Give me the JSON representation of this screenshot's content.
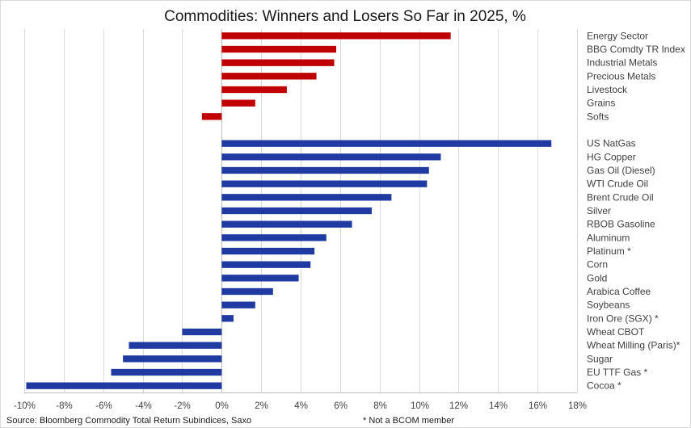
{
  "chart_data": {
    "type": "bar",
    "orientation": "horizontal",
    "title": "Commodities: Winners and Losers So Far in 2025, %",
    "xlim": [
      -10,
      18
    ],
    "x_ticks": [
      -10,
      -8,
      -6,
      -4,
      -2,
      0,
      2,
      4,
      6,
      8,
      10,
      12,
      14,
      16,
      18
    ],
    "x_tick_labels": [
      "-10%",
      "-8%",
      "-6%",
      "-4%",
      "-2%",
      "0%",
      "2%",
      "4%",
      "6%",
      "8%",
      "10%",
      "12%",
      "14%",
      "16%",
      "18%"
    ],
    "grid": "vertical",
    "category_labels_position": "right",
    "groups": [
      {
        "color": "#c00000",
        "categories": [
          "Energy Sector",
          "BBG Comdty TR Index",
          "Industrial Metals",
          "Precious Metals",
          "Livestock",
          "Grains",
          "Softs"
        ],
        "values": [
          11.6,
          5.8,
          5.7,
          4.8,
          3.3,
          1.7,
          -1.0
        ]
      },
      {
        "color": "#1f3aa0",
        "categories": [
          "US NatGas",
          "HG Copper",
          "Gas Oil (Diesel)",
          "WTI Crude Oil",
          "Brent Crude Oil",
          "Silver",
          "RBOB Gasoline",
          "Aluminum",
          "Platinum *",
          "Corn",
          "Gold",
          "Arabica Coffee",
          "Soybeans",
          "Iron Ore (SGX) *",
          "Wheat CBOT",
          "Wheat Milling (Paris)*",
          "Sugar",
          "EU TTF Gas *",
          "Cocoa *"
        ],
        "values": [
          16.7,
          11.1,
          10.5,
          10.4,
          8.6,
          7.6,
          6.6,
          5.3,
          4.7,
          4.5,
          3.9,
          2.6,
          1.7,
          0.6,
          -2.0,
          -4.7,
          -5.0,
          -5.6,
          -9.9
        ]
      }
    ]
  },
  "footer": {
    "source": "Source: Bloomberg Commodity Total Return Subindices, Saxo",
    "note": "* Not a BCOM member"
  }
}
